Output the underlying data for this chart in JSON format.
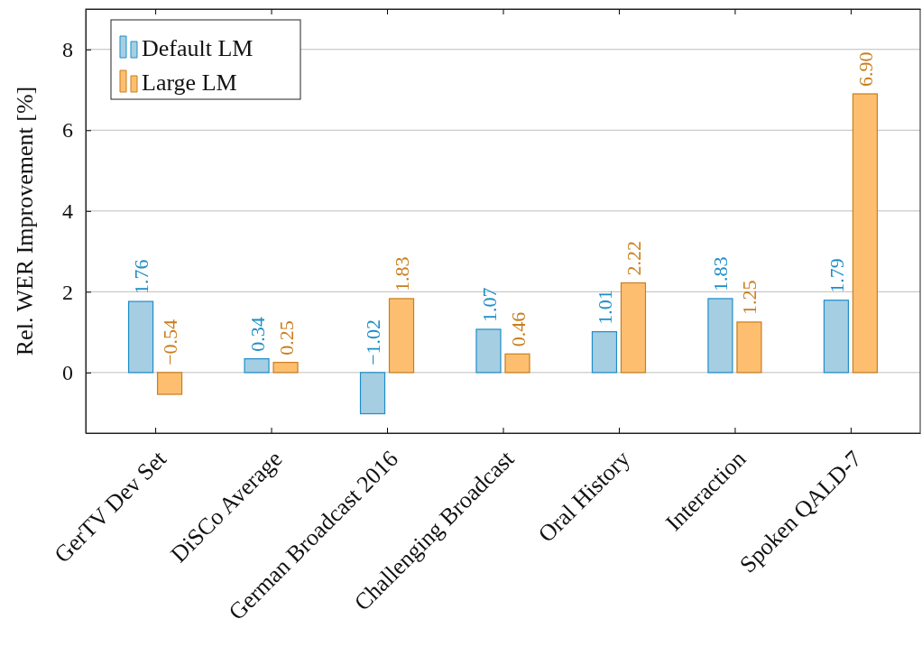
{
  "chart_data": {
    "type": "bar",
    "ylabel": "Rel. WER Improvement [%]",
    "categories": [
      "GerTV Dev Set",
      "DiSCo Average",
      "German Broadcast 2016",
      "Challenging Broadcast",
      "Oral History",
      "Interaction",
      "Spoken QALD-7"
    ],
    "series": [
      {
        "name": "Default LM",
        "color": "#a6cee3",
        "values": [
          1.76,
          0.34,
          -1.02,
          1.07,
          1.01,
          1.83,
          1.79
        ],
        "value_labels": [
          "1.76",
          "0.34",
          "−1.02",
          "1.07",
          "1.01",
          "1.83",
          "1.79"
        ]
      },
      {
        "name": "Large LM",
        "color": "#fdbf6f",
        "values": [
          -0.54,
          0.25,
          1.83,
          0.46,
          2.22,
          1.25,
          6.9
        ],
        "value_labels": [
          "−0.54",
          "0.25",
          "1.83",
          "0.46",
          "2.22",
          "1.25",
          "6.90"
        ]
      }
    ],
    "ylim": [
      -1.5,
      9
    ],
    "yticks": [
      0,
      2,
      4,
      6,
      8
    ],
    "grid": "y",
    "legend": "top left"
  }
}
